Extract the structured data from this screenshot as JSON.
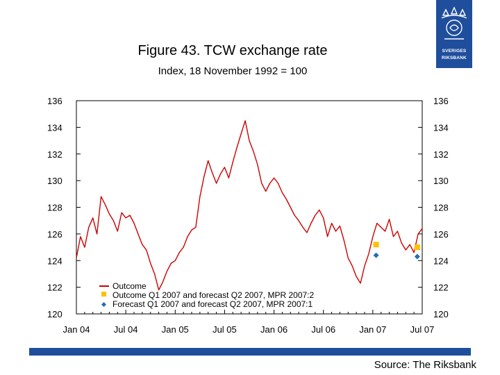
{
  "header": {
    "title": "Figure 43. TCW exchange rate",
    "subtitle": "Index, 18 November 1992 = 100"
  },
  "logo": {
    "line1": "SVERIGES",
    "line2": "RIKSBANK"
  },
  "footer": {
    "source": "Source: The Riksbank"
  },
  "colors": {
    "brand": "#1f4e9c",
    "outcome": "#cc0000",
    "outcome_q1": "#ffc000",
    "forecast_q1": "#1f6fb5"
  },
  "chart_data": {
    "type": "line",
    "title": "Figure 43. TCW exchange rate",
    "subtitle": "Index, 18 November 1992 = 100",
    "ylim": [
      120,
      136
    ],
    "yticks": [
      "120",
      "122",
      "124",
      "126",
      "128",
      "130",
      "132",
      "134",
      "136"
    ],
    "xticks": [
      "Jan 04",
      "Jul 04",
      "Jan 05",
      "Jul 05",
      "Jan 06",
      "Jul 06",
      "Jan 07",
      "Jul 07"
    ],
    "xlim": [
      0,
      42
    ],
    "legend_position": "bottom-left",
    "series": [
      {
        "name": "Outcome",
        "type": "line",
        "x": [
          0,
          0.5,
          1,
          1.5,
          2,
          2.5,
          3,
          3.5,
          4,
          4.5,
          5,
          5.5,
          6,
          6.5,
          7,
          7.5,
          8,
          8.5,
          9,
          9.5,
          10,
          10.5,
          11,
          11.5,
          12,
          12.5,
          13,
          13.5,
          14,
          14.5,
          15,
          15.5,
          16,
          16.5,
          17,
          17.5,
          18,
          18.5,
          19,
          19.5,
          20,
          20.5,
          21,
          21.5,
          22,
          22.5,
          23,
          23.5,
          24,
          24.5,
          25,
          25.5,
          26,
          26.5,
          27,
          27.5,
          28,
          28.5,
          29,
          29.5,
          30,
          30.5,
          31,
          31.5,
          32,
          32.5,
          33,
          33.5,
          34,
          34.5,
          35,
          35.5,
          36,
          36.5,
          37,
          37.5,
          38,
          38.5,
          39,
          39.5,
          40,
          40.5,
          41,
          41.5,
          42
        ],
        "values": [
          124.2,
          125.8,
          125.0,
          126.5,
          127.2,
          126.0,
          128.8,
          128.2,
          127.5,
          127.0,
          126.2,
          127.6,
          127.2,
          127.4,
          126.8,
          126.0,
          125.2,
          124.8,
          123.8,
          123.0,
          121.8,
          122.4,
          123.2,
          123.8,
          124.0,
          124.6,
          125.0,
          125.8,
          126.3,
          126.5,
          128.8,
          130.3,
          131.5,
          130.6,
          129.8,
          130.5,
          131.0,
          130.2,
          131.4,
          132.5,
          133.5,
          134.5,
          133.0,
          132.2,
          131.2,
          129.8,
          129.2,
          129.8,
          130.2,
          129.8,
          129.1,
          128.6,
          128.0,
          127.4,
          127.0,
          126.5,
          126.1,
          126.8,
          127.4,
          127.8,
          127.2,
          125.8,
          126.8,
          126.2,
          126.6,
          125.5,
          124.2,
          123.6,
          122.8,
          122.3,
          123.6,
          124.5,
          125.8,
          126.8,
          126.5,
          126.2,
          127.1,
          125.8,
          126.2,
          125.3,
          124.8,
          125.2,
          124.6,
          126.0,
          126.4
        ]
      },
      {
        "name": "Outcome Q1 2007 and forecast Q2 2007, MPR 2007:2",
        "type": "marker",
        "x": [
          36.4,
          41.4
        ],
        "values": [
          125.2,
          125.0
        ]
      },
      {
        "name": "Forecast Q1 2007 and forecast Q2 2007, MPR 2007:1",
        "type": "marker",
        "x": [
          36.4,
          41.4
        ],
        "values": [
          124.4,
          124.3
        ]
      }
    ]
  }
}
